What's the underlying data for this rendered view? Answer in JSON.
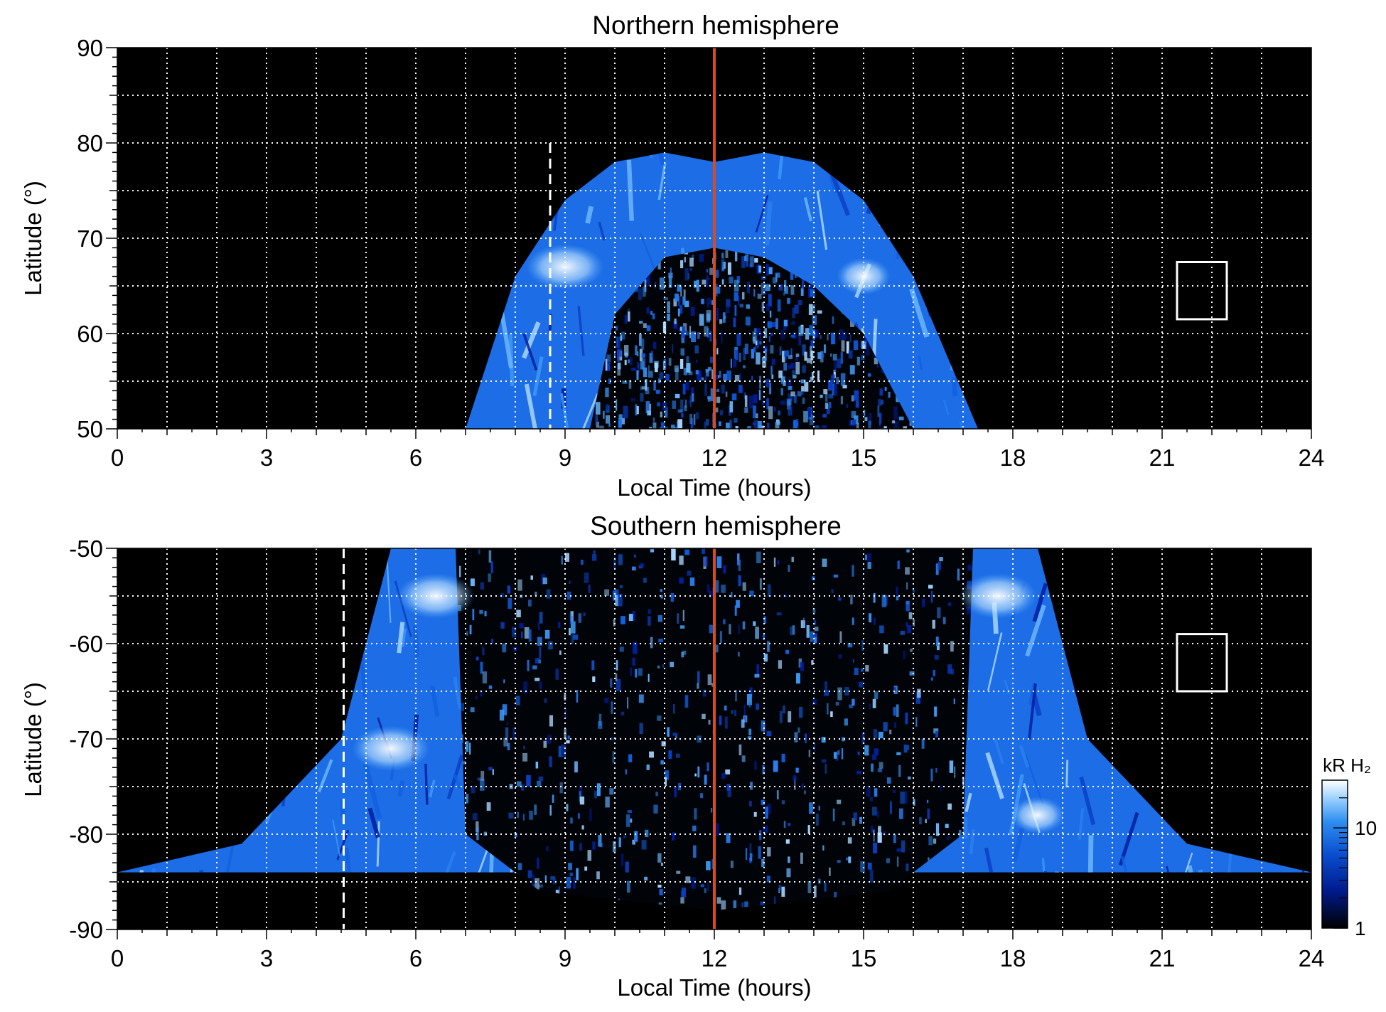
{
  "chart_data": [
    {
      "type": "heatmap",
      "title": "Northern hemisphere",
      "xlabel": "Local Time (hours)",
      "ylabel": "Latitude (°)",
      "xlim": [
        0,
        24
      ],
      "ylim": [
        50,
        90
      ],
      "xticks": [
        0,
        3,
        6,
        9,
        12,
        15,
        18,
        21,
        24
      ],
      "yticks": [
        50,
        60,
        70,
        80,
        90
      ],
      "grid": true,
      "auroral_oval": {
        "outer": {
          "lt": [
            7.0,
            8.0,
            9.0,
            10.0,
            11.0,
            12.0,
            13.0,
            14.0,
            15.0,
            16.0,
            17.3
          ],
          "lat": [
            50,
            66,
            74,
            78,
            79,
            78,
            79,
            78,
            74,
            66,
            50
          ]
        },
        "inner": {
          "lt": [
            9.5,
            10.0,
            11.0,
            12.0,
            13.0,
            14.0,
            15.0,
            16.0
          ],
          "lat": [
            50,
            62,
            68,
            69,
            68,
            65,
            60,
            50
          ]
        },
        "bright_spots": [
          {
            "lt": 9.0,
            "lat": 67,
            "level": "high"
          },
          {
            "lt": 15.0,
            "lat": 66,
            "level": "medium"
          }
        ]
      },
      "reference_lines": [
        {
          "kind": "dashed",
          "color": "#ffffff",
          "lt": 8.7,
          "lat_range": [
            50,
            80
          ]
        },
        {
          "kind": "solid",
          "color": "#d94a1e",
          "lt": 12
        }
      ],
      "box": {
        "lt": [
          21.3,
          22.3
        ],
        "lat": [
          61.5,
          67.5
        ],
        "color": "#ffffff"
      }
    },
    {
      "type": "heatmap",
      "title": "Southern hemisphere",
      "xlabel": "Local Time (hours)",
      "ylabel": "Latitude (°)",
      "xlim": [
        0,
        24
      ],
      "ylim": [
        -90,
        -50
      ],
      "xticks": [
        0,
        3,
        6,
        9,
        12,
        15,
        18,
        21,
        24
      ],
      "yticks": [
        -90,
        -80,
        -70,
        -60,
        -50
      ],
      "grid": true,
      "auroral_oval": {
        "outer": {
          "lt": [
            0,
            2.5,
            4.5,
            5.5,
            18.5,
            19.5,
            21.5,
            24
          ],
          "lat": [
            -84,
            -81,
            -70,
            -50,
            -50,
            -70,
            -81,
            -84
          ]
        },
        "inner": {
          "lt": [
            6.8,
            7.0,
            8.5,
            12.0,
            15.5,
            17.0,
            17.2
          ],
          "lat": [
            -50,
            -80,
            -86,
            -88,
            -86,
            -80,
            -50
          ]
        },
        "bright_spots": [
          {
            "lt": 5.5,
            "lat": -71,
            "level": "high"
          },
          {
            "lt": 6.4,
            "lat": -55,
            "level": "high"
          },
          {
            "lt": 17.7,
            "lat": -55,
            "level": "high"
          },
          {
            "lt": 18.5,
            "lat": -78,
            "level": "medium"
          }
        ]
      },
      "reference_lines": [
        {
          "kind": "dashed",
          "color": "#ffffff",
          "lt": 4.55
        },
        {
          "kind": "solid",
          "color": "#d94a1e",
          "lt": 12
        }
      ],
      "box": {
        "lt": [
          21.3,
          22.3
        ],
        "lat": [
          -65,
          -59
        ],
        "color": "#ffffff"
      }
    }
  ],
  "colorbar": {
    "label": "kR H₂",
    "scale": "log",
    "range": [
      1,
      30
    ],
    "ticks": [
      1,
      10
    ],
    "colors": [
      "#000000",
      "#001a8c",
      "#0a4fd0",
      "#2e8ef0",
      "#9fd2ff",
      "#ffffff"
    ]
  }
}
